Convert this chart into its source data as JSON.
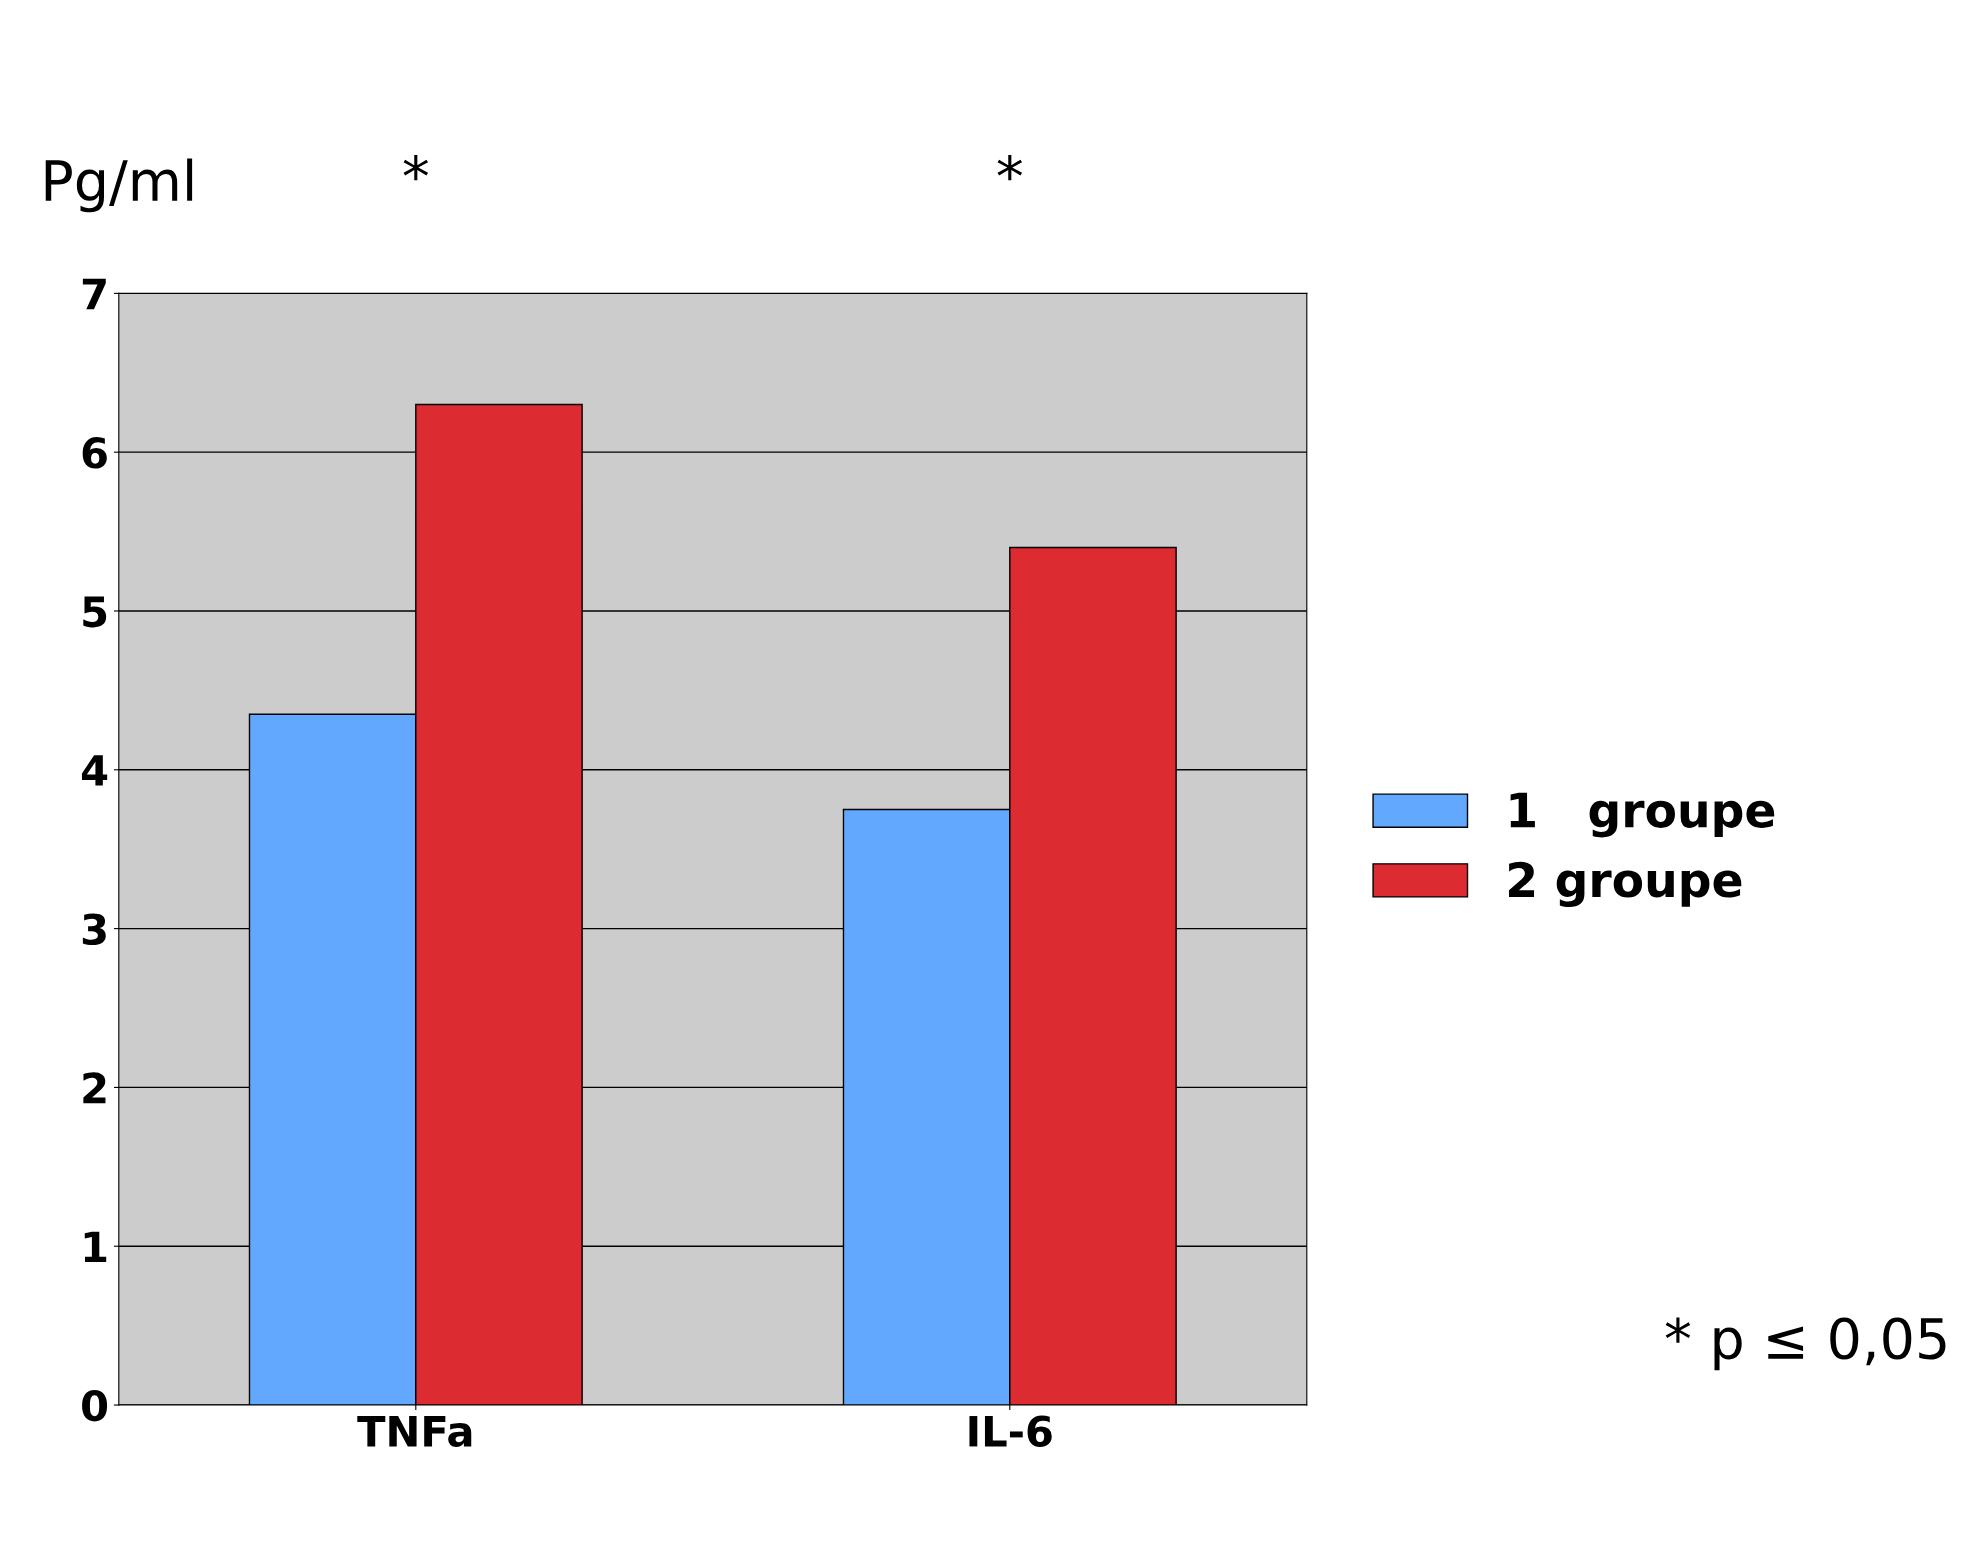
{
  "chart_data": {
    "type": "bar",
    "ylabel": "Pg/ml",
    "categories": [
      "TNFa",
      "IL-6"
    ],
    "series": [
      {
        "name": "1   groupe",
        "color": "#62a8fe",
        "values": [
          4.35,
          3.75
        ]
      },
      {
        "name": "2 groupe",
        "color": "#dc2b31",
        "values": [
          6.3,
          5.4
        ]
      }
    ],
    "ylim": [
      0,
      7
    ],
    "yticks": [
      0,
      1,
      2,
      3,
      4,
      5,
      6,
      7
    ],
    "grid": "y",
    "legend": "right",
    "annotations": [
      "*",
      "*",
      "* p ≤ 0,05"
    ]
  }
}
